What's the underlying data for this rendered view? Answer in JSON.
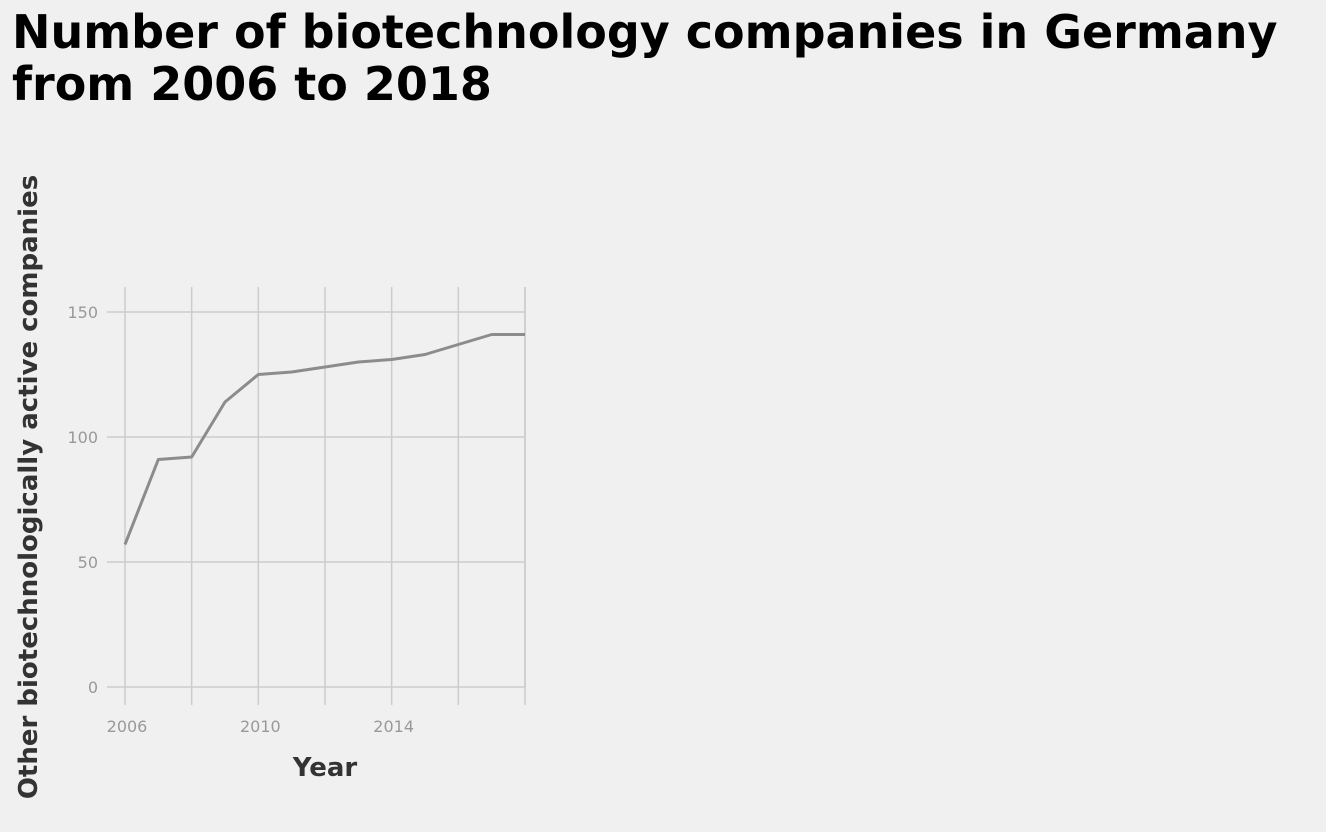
{
  "chart_data": {
    "type": "line",
    "title": "Number of biotechnology companies in Germany from 2006 to 2018",
    "xlabel": "Year",
    "ylabel": "Other biotechnologically active companies",
    "x": [
      2006,
      2007,
      2008,
      2009,
      2010,
      2011,
      2012,
      2013,
      2014,
      2015,
      2016,
      2017,
      2018
    ],
    "series": [
      {
        "values": [
          57,
          91,
          92,
          114,
          125,
          126,
          128,
          130,
          131,
          133,
          137,
          141,
          141
        ]
      }
    ],
    "xlim": [
      2006,
      2018
    ],
    "ylim": [
      0,
      160
    ],
    "xticks": [
      "2006",
      "2010",
      "2014"
    ],
    "yticks": [
      "0",
      "50",
      "100",
      "150"
    ],
    "grid": true,
    "line_color": "#8c8c8c"
  }
}
